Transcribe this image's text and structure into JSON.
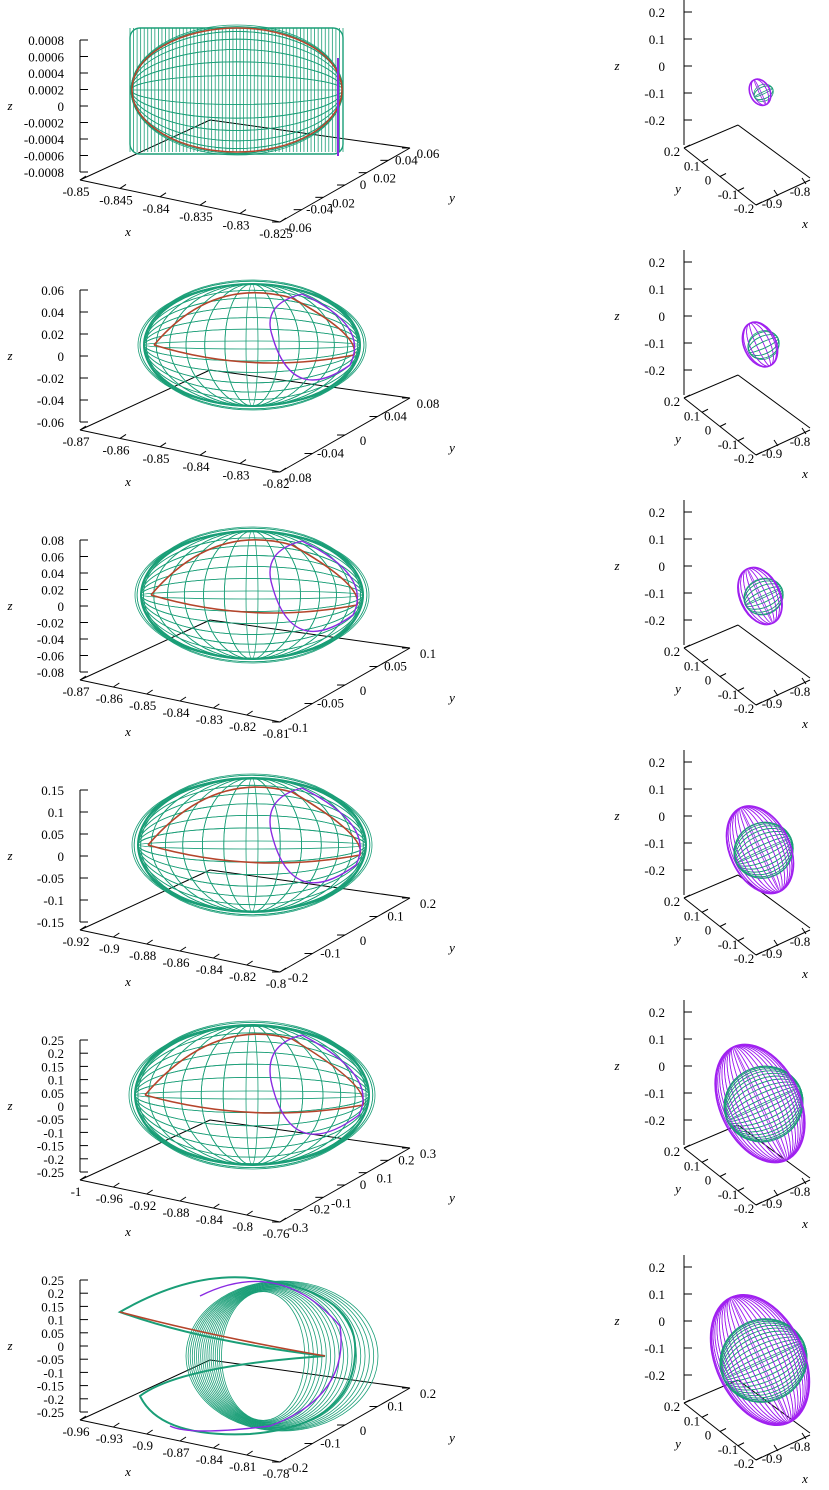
{
  "colors": {
    "surface": "#1a9e77",
    "outline": "#b5442b",
    "purple": "#8a2be2",
    "magenta": "#a020f0",
    "axis": "#000000"
  },
  "chart_data": [
    {
      "type": "scatter",
      "panel": "left-1",
      "xlabel": "x",
      "ylabel": "y",
      "zlabel": "z",
      "z_ticks": [
        "0.0008",
        "0.0006",
        "0.0004",
        "0.0002",
        "0",
        "-0.0002",
        "-0.0004",
        "-0.0006",
        "-0.0008"
      ],
      "x_ticks": [
        "-0.85",
        "-0.845",
        "-0.84",
        "-0.835",
        "-0.83",
        "-0.825"
      ],
      "y_ticks": [
        "0.06",
        "0.04",
        "0.02",
        "0",
        "-0.02",
        "-0.04",
        "-0.06"
      ],
      "shape": "cylinder"
    },
    {
      "type": "scatter",
      "panel": "right-1",
      "xlabel": "x",
      "ylabel": "y",
      "zlabel": "z",
      "z_ticks": [
        "0.2",
        "0.1",
        "0",
        "-0.1",
        "-0.2"
      ],
      "y_ticks": [
        "0.2",
        "0.1",
        "0",
        "-0.1",
        "-0.2"
      ],
      "x_ticks": [
        "-0.9",
        "-0.8"
      ],
      "size": 0.15
    },
    {
      "type": "scatter",
      "panel": "left-2",
      "xlabel": "x",
      "ylabel": "y",
      "zlabel": "z",
      "z_ticks": [
        "0.06",
        "0.04",
        "0.02",
        "0",
        "-0.02",
        "-0.04",
        "-0.06"
      ],
      "x_ticks": [
        "-0.87",
        "-0.86",
        "-0.85",
        "-0.84",
        "-0.83",
        "-0.82"
      ],
      "y_ticks": [
        "0.08",
        "0.04",
        "0",
        "-0.04",
        "-0.08"
      ],
      "shape": "blob"
    },
    {
      "type": "scatter",
      "panel": "right-2",
      "xlabel": "x",
      "ylabel": "y",
      "zlabel": "z",
      "z_ticks": [
        "0.2",
        "0.1",
        "0",
        "-0.1",
        "-0.2"
      ],
      "y_ticks": [
        "0.2",
        "0.1",
        "0",
        "-0.1",
        "-0.2"
      ],
      "x_ticks": [
        "-0.9",
        "-0.8"
      ],
      "size": 0.3
    },
    {
      "type": "scatter",
      "panel": "left-3",
      "xlabel": "x",
      "ylabel": "y",
      "zlabel": "z",
      "z_ticks": [
        "0.08",
        "0.06",
        "0.04",
        "0.02",
        "0",
        "-0.02",
        "-0.04",
        "-0.06",
        "-0.08"
      ],
      "x_ticks": [
        "-0.87",
        "-0.86",
        "-0.85",
        "-0.84",
        "-0.83",
        "-0.82",
        "-0.81"
      ],
      "y_ticks": [
        "0.1",
        "0.05",
        "0",
        "-0.05",
        "-0.1"
      ],
      "shape": "blob"
    },
    {
      "type": "scatter",
      "panel": "right-3",
      "xlabel": "x",
      "ylabel": "y",
      "zlabel": "z",
      "z_ticks": [
        "0.2",
        "0.1",
        "0",
        "-0.1",
        "-0.2"
      ],
      "y_ticks": [
        "0.2",
        "0.1",
        "0",
        "-0.1",
        "-0.2"
      ],
      "x_ticks": [
        "-0.9",
        "-0.8"
      ],
      "size": 0.4
    },
    {
      "type": "scatter",
      "panel": "left-4",
      "xlabel": "x",
      "ylabel": "y",
      "zlabel": "z",
      "z_ticks": [
        "0.15",
        "0.1",
        "0.05",
        "0",
        "-0.05",
        "-0.1",
        "-0.15"
      ],
      "x_ticks": [
        "-0.92",
        "-0.9",
        "-0.88",
        "-0.86",
        "-0.84",
        "-0.82",
        "-0.8"
      ],
      "y_ticks": [
        "0.2",
        "0.1",
        "0",
        "-0.1",
        "-0.2"
      ],
      "shape": "blob"
    },
    {
      "type": "scatter",
      "panel": "right-4",
      "xlabel": "x",
      "ylabel": "y",
      "zlabel": "z",
      "z_ticks": [
        "0.2",
        "0.1",
        "0",
        "-0.1",
        "-0.2"
      ],
      "y_ticks": [
        "0.2",
        "0.1",
        "0",
        "-0.1",
        "-0.2"
      ],
      "x_ticks": [
        "-0.9",
        "-0.8"
      ],
      "size": 0.65
    },
    {
      "type": "scatter",
      "panel": "left-5",
      "xlabel": "x",
      "ylabel": "y",
      "zlabel": "z",
      "z_ticks": [
        "0.25",
        "0.2",
        "0.15",
        "0.1",
        "0.05",
        "0",
        "-0.05",
        "-0.1",
        "-0.15",
        "-0.2",
        "-0.25"
      ],
      "x_ticks": [
        "-1",
        "-0.96",
        "-0.92",
        "-0.88",
        "-0.84",
        "-0.8",
        "-0.76"
      ],
      "y_ticks": [
        "0.3",
        "0.2",
        "0.1",
        "0",
        "-0.1",
        "-0.2",
        "-0.3"
      ],
      "shape": "blob"
    },
    {
      "type": "scatter",
      "panel": "right-5",
      "xlabel": "x",
      "ylabel": "y",
      "zlabel": "z",
      "z_ticks": [
        "0.2",
        "0.1",
        "0",
        "-0.1",
        "-0.2"
      ],
      "y_ticks": [
        "0.2",
        "0.1",
        "0",
        "-0.1",
        "-0.2"
      ],
      "x_ticks": [
        "-0.9",
        "-0.8"
      ],
      "size": 0.9
    },
    {
      "type": "scatter",
      "panel": "left-6",
      "xlabel": "x",
      "ylabel": "y",
      "zlabel": "z",
      "z_ticks": [
        "0.25",
        "0.2",
        "0.15",
        "0.1",
        "0.05",
        "0",
        "-0.05",
        "-0.1",
        "-0.15",
        "-0.2",
        "-0.25"
      ],
      "x_ticks": [
        "-0.96",
        "-0.93",
        "-0.9",
        "-0.87",
        "-0.84",
        "-0.81",
        "-0.78"
      ],
      "y_ticks": [
        "0.2",
        "0.1",
        "0",
        "-0.1",
        "-0.2"
      ],
      "shape": "pacman"
    },
    {
      "type": "scatter",
      "panel": "right-6",
      "xlabel": "x",
      "ylabel": "y",
      "zlabel": "z",
      "z_ticks": [
        "0.2",
        "0.1",
        "0",
        "-0.1",
        "-0.2"
      ],
      "y_ticks": [
        "0.2",
        "0.1",
        "0",
        "-0.1",
        "-0.2"
      ],
      "x_ticks": [
        "-0.9",
        "-0.8"
      ],
      "size": 1.0
    }
  ]
}
